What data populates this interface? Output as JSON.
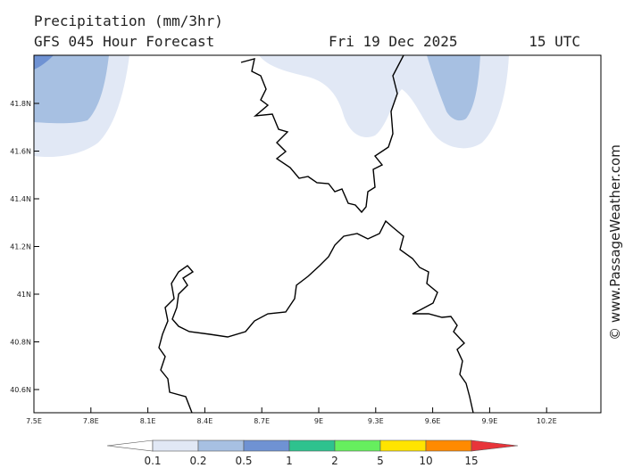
{
  "title": "Precipitation (mm/3hr)",
  "subtitle": "GFS 045 Hour Forecast",
  "date": "Fri 19 Dec 2025",
  "time": "15 UTC",
  "watermark": "© www.PassageWeather.com",
  "map": {
    "lat_labels": [
      "41.8N",
      "41.6N",
      "41.4N",
      "41.2N",
      "41N",
      "40.8N",
      "40.6N"
    ],
    "lon_labels": [
      "7.5E",
      "7.8E",
      "8.1E",
      "8.4E",
      "8.7E",
      "9E",
      "9.3E",
      "9.6E",
      "9.9E",
      "10.2E"
    ]
  },
  "legend": {
    "labels": [
      "0.1",
      "0.2",
      "0.5",
      "1",
      "2",
      "5",
      "10",
      "15"
    ],
    "colors": [
      "#ffffff",
      "#e1e8f5",
      "#a7c0e2",
      "#6f92d3",
      "#2ec28e",
      "#66ef5e",
      "#ffe400",
      "#ff8a00",
      "#e8343a"
    ]
  }
}
